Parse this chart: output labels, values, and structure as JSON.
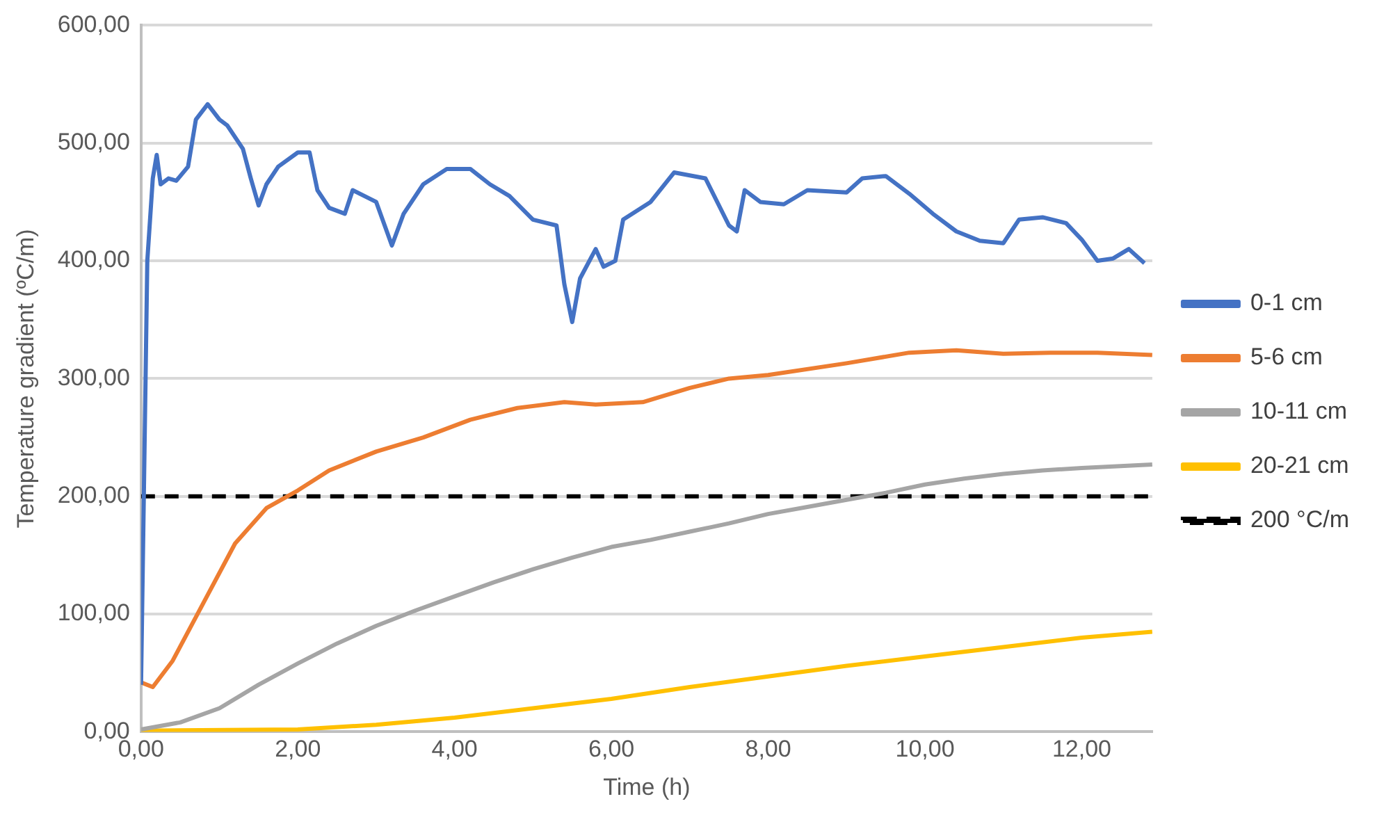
{
  "chart_data": {
    "type": "line",
    "xlabel": "Time (h)",
    "ylabel": "Temperature gradient (ºC/m)",
    "xlim": [
      0,
      12.9
    ],
    "xticks": [
      {
        "value": 0,
        "label": "0,00"
      },
      {
        "value": 2,
        "label": "2,00"
      },
      {
        "value": 4,
        "label": "4,00"
      },
      {
        "value": 6,
        "label": "6,00"
      },
      {
        "value": 8,
        "label": "8,00"
      },
      {
        "value": 10,
        "label": "10,00"
      },
      {
        "value": 12,
        "label": "12,00"
      }
    ],
    "ylim": [
      0,
      600
    ],
    "yticks": [
      {
        "value": 0,
        "label": "0,00"
      },
      {
        "value": 100,
        "label": "100,00"
      },
      {
        "value": 200,
        "label": "200,00"
      },
      {
        "value": 300,
        "label": "300,00"
      },
      {
        "value": 400,
        "label": "400,00"
      },
      {
        "value": 500,
        "label": "500,00"
      },
      {
        "value": 600,
        "label": "600,00"
      }
    ],
    "grid": "y",
    "legend": "right",
    "marker": "none",
    "line_style": "solid",
    "series": [
      {
        "name": "0-1 cm",
        "color": "#4472c4",
        "x": [
          0,
          0.08,
          0.15,
          0.2,
          0.25,
          0.35,
          0.45,
          0.6,
          0.7,
          0.85,
          1.0,
          1.1,
          1.3,
          1.4,
          1.5,
          1.6,
          1.75,
          2.0,
          2.15,
          2.25,
          2.4,
          2.6,
          2.7,
          3.0,
          3.2,
          3.35,
          3.6,
          3.9,
          4.2,
          4.45,
          4.7,
          5.0,
          5.3,
          5.4,
          5.5,
          5.6,
          5.8,
          5.9,
          6.05,
          6.15,
          6.5,
          6.8,
          7.2,
          7.5,
          7.6,
          7.7,
          7.9,
          8.2,
          8.5,
          9.0,
          9.2,
          9.5,
          9.8,
          10.1,
          10.4,
          10.7,
          11.0,
          11.2,
          11.5,
          11.8,
          12.0,
          12.2,
          12.4,
          12.6,
          12.8
        ],
        "values": [
          40,
          400,
          470,
          490,
          465,
          470,
          468,
          480,
          520,
          533,
          520,
          515,
          495,
          470,
          447,
          465,
          480,
          492,
          492,
          460,
          445,
          440,
          460,
          450,
          413,
          440,
          465,
          478,
          478,
          465,
          455,
          435,
          430,
          380,
          348,
          385,
          410,
          395,
          400,
          435,
          450,
          475,
          470,
          430,
          425,
          460,
          450,
          448,
          460,
          458,
          470,
          472,
          457,
          440,
          425,
          417,
          415,
          435,
          437,
          432,
          418,
          400,
          402,
          410,
          398
        ]
      },
      {
        "name": "5-6 cm",
        "color": "#ed7d31",
        "x": [
          0,
          0.15,
          0.4,
          0.8,
          1.2,
          1.6,
          2.0,
          2.4,
          3,
          3.6,
          4.2,
          4.8,
          5.4,
          5.8,
          6.4,
          7.0,
          7.5,
          8.0,
          9.0,
          9.8,
          10.4,
          11,
          11.6,
          12.2,
          12.9
        ],
        "values": [
          42,
          38,
          60,
          110,
          160,
          190,
          205,
          222,
          238,
          250,
          265,
          275,
          280,
          278,
          280,
          292,
          300,
          303,
          313,
          322,
          324,
          321,
          322,
          322,
          320
        ]
      },
      {
        "name": "10-11 cm",
        "color": "#a5a5a5",
        "x": [
          0,
          0.5,
          1,
          1.5,
          2,
          2.5,
          3,
          3.5,
          4,
          4.5,
          5,
          5.5,
          6,
          6.5,
          7,
          7.5,
          8,
          8.5,
          9,
          9.5,
          10,
          10.5,
          11,
          11.5,
          12,
          12.9
        ],
        "values": [
          2,
          8,
          20,
          40,
          58,
          75,
          90,
          103,
          115,
          127,
          138,
          148,
          157,
          163,
          170,
          177,
          185,
          191,
          197,
          203,
          210,
          215,
          219,
          222,
          224,
          227
        ]
      },
      {
        "name": "20-21 cm",
        "color": "#ffc000",
        "x": [
          0,
          2,
          3,
          4,
          5,
          6,
          7,
          8,
          9,
          10,
          11,
          12,
          12.9
        ],
        "values": [
          1,
          2,
          6,
          12,
          20,
          28,
          38,
          47,
          56,
          64,
          72,
          80,
          85
        ]
      }
    ],
    "ref_lines": [
      {
        "axis": "y",
        "value": 200,
        "label": "200 °C/m",
        "color": "#000000",
        "line_style": "dashed"
      }
    ]
  }
}
